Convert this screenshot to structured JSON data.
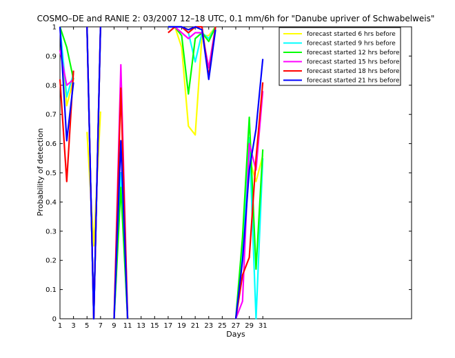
{
  "chart_data": {
    "type": "line",
    "title": "COSMO–DE and RANIE 2: 03/2007 12–18 UTC, 0.1 mm/6h for \"Danube upriver of Schwabelweis\"",
    "xlabel": "Days",
    "ylabel": "Probability of detection",
    "xlim": [
      1,
      53
    ],
    "ylim": [
      0,
      1
    ],
    "x_ticks": [
      1,
      3,
      5,
      7,
      9,
      11,
      13,
      15,
      17,
      19,
      21,
      23,
      25,
      27,
      29,
      31
    ],
    "y_ticks": [
      0,
      0.1,
      0.2,
      0.3,
      0.4,
      0.5,
      0.6,
      0.7,
      0.8,
      0.9,
      1
    ],
    "y_tick_labels": [
      "0",
      "0.1",
      "0.2",
      "0.3",
      "0.4",
      "0.5",
      "0.6",
      "0.7",
      "0.8",
      "0.9",
      "1"
    ],
    "grid": false,
    "legend_position": "top-right",
    "series": [
      {
        "name": "forecast started 6 hrs before",
        "color": "#ffff00",
        "segments": [
          [
            [
              1,
              1.0
            ],
            [
              2,
              0.73
            ],
            [
              3,
              0.82
            ]
          ],
          [
            [
              5,
              0.64
            ],
            [
              6,
              0.25
            ],
            [
              7,
              0.71
            ]
          ],
          [
            [
              9,
              0.0
            ],
            [
              10,
              0.48
            ],
            [
              11,
              0.0
            ]
          ],
          [
            [
              17,
              1.0
            ],
            [
              18,
              1.0
            ],
            [
              19,
              0.93
            ],
            [
              20,
              0.66
            ],
            [
              21,
              0.63
            ],
            [
              22,
              0.97
            ],
            [
              23,
              0.97
            ],
            [
              24,
              1.0
            ]
          ],
          [
            [
              27,
              0.0
            ],
            [
              28,
              0.21
            ],
            [
              29,
              0.55
            ],
            [
              30,
              0.47
            ],
            [
              31,
              0.56
            ]
          ]
        ]
      },
      {
        "name": "forecast started 9 hrs before",
        "color": "#00ffff",
        "segments": [
          [
            [
              1,
              1.0
            ],
            [
              2,
              0.76
            ],
            [
              3,
              0.84
            ]
          ],
          [
            [
              5,
              1.0
            ],
            [
              6,
              0.0
            ],
            [
              7,
              1.0
            ]
          ],
          [
            [
              9,
              0.0
            ],
            [
              10,
              0.5
            ],
            [
              11,
              0.0
            ]
          ],
          [
            [
              17,
              1.0
            ],
            [
              18,
              1.0
            ],
            [
              19,
              1.0
            ],
            [
              20,
              0.98
            ],
            [
              21,
              0.88
            ],
            [
              22,
              0.98
            ],
            [
              23,
              0.96
            ],
            [
              24,
              1.0
            ]
          ],
          [
            [
              27,
              0.0
            ],
            [
              28,
              0.22
            ],
            [
              29,
              0.62
            ],
            [
              30,
              0.0
            ],
            [
              31,
              0.55
            ]
          ]
        ]
      },
      {
        "name": "forecast started 12 hrs before",
        "color": "#00ff00",
        "segments": [
          [
            [
              1,
              1.0
            ],
            [
              2,
              0.93
            ],
            [
              3,
              0.82
            ]
          ],
          [
            [
              5,
              1.0
            ],
            [
              6,
              0.0
            ],
            [
              7,
              1.0
            ]
          ],
          [
            [
              9,
              0.0
            ],
            [
              10,
              0.45
            ],
            [
              11,
              0.0
            ]
          ],
          [
            [
              17,
              1.0
            ],
            [
              18,
              1.0
            ],
            [
              19,
              0.97
            ],
            [
              20,
              0.77
            ],
            [
              21,
              0.96
            ],
            [
              22,
              0.98
            ],
            [
              23,
              0.95
            ],
            [
              24,
              1.0
            ]
          ],
          [
            [
              27,
              0.0
            ],
            [
              28,
              0.28
            ],
            [
              29,
              0.69
            ],
            [
              30,
              0.17
            ],
            [
              31,
              0.58
            ]
          ]
        ]
      },
      {
        "name": "forecast started 15 hrs before",
        "color": "#ff00ff",
        "segments": [
          [
            [
              1,
              0.92
            ],
            [
              2,
              0.8
            ],
            [
              3,
              0.82
            ]
          ],
          [
            [
              5,
              1.0
            ],
            [
              6,
              0.0
            ],
            [
              7,
              1.0
            ]
          ],
          [
            [
              9,
              0.0
            ],
            [
              10,
              0.87
            ],
            [
              11,
              0.0
            ]
          ],
          [
            [
              17,
              1.0
            ],
            [
              18,
              1.0
            ],
            [
              19,
              0.98
            ],
            [
              20,
              0.96
            ],
            [
              21,
              0.98
            ],
            [
              22,
              0.98
            ],
            [
              23,
              0.86
            ],
            [
              24,
              1.0
            ]
          ],
          [
            [
              27,
              0.0
            ],
            [
              28,
              0.06
            ],
            [
              29,
              0.6
            ],
            [
              30,
              0.51
            ],
            [
              31,
              0.78
            ]
          ]
        ]
      },
      {
        "name": "forecast started 18 hrs before",
        "color": "#ff0000",
        "segments": [
          [
            [
              1,
              0.82
            ],
            [
              2,
              0.47
            ],
            [
              3,
              0.85
            ]
          ],
          [
            [
              5,
              1.0
            ],
            [
              6,
              0.0
            ],
            [
              7,
              1.0
            ]
          ],
          [
            [
              9,
              0.0
            ],
            [
              10,
              0.79
            ],
            [
              11,
              0.0
            ]
          ],
          [
            [
              17,
              0.98
            ],
            [
              18,
              1.0
            ],
            [
              19,
              1.0
            ],
            [
              20,
              0.98
            ],
            [
              21,
              1.0
            ],
            [
              22,
              1.0
            ],
            [
              23,
              0.83
            ],
            [
              24,
              1.0
            ]
          ],
          [
            [
              27,
              0.0
            ],
            [
              28,
              0.15
            ],
            [
              29,
              0.21
            ],
            [
              30,
              0.55
            ],
            [
              31,
              0.81
            ]
          ]
        ]
      },
      {
        "name": "forecast started 21 hrs before",
        "color": "#0000ff",
        "segments": [
          [
            [
              1,
              1.0
            ],
            [
              2,
              0.61
            ],
            [
              3,
              0.81
            ]
          ],
          [
            [
              5,
              1.0
            ],
            [
              6,
              0.0
            ],
            [
              7,
              1.0
            ]
          ],
          [
            [
              9,
              0.0
            ],
            [
              10,
              0.61
            ],
            [
              11,
              0.0
            ]
          ],
          [
            [
              17,
              1.0
            ],
            [
              18,
              1.0
            ],
            [
              19,
              1.0
            ],
            [
              20,
              0.99
            ],
            [
              21,
              1.0
            ],
            [
              22,
              0.99
            ],
            [
              23,
              0.82
            ],
            [
              24,
              0.99
            ]
          ],
          [
            [
              27,
              0.0
            ],
            [
              28,
              0.2
            ],
            [
              29,
              0.51
            ],
            [
              30,
              0.65
            ],
            [
              31,
              0.89
            ]
          ]
        ]
      }
    ]
  }
}
